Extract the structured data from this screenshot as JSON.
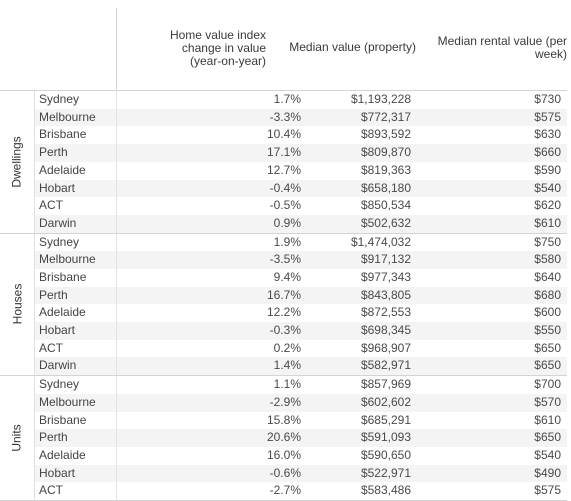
{
  "chart_data": {
    "type": "table",
    "columns": [
      "Home value index change in value (year-on-year)",
      "Median value (property)",
      "Median rental value (per week)"
    ],
    "groups": [
      {
        "name": "Dwellings",
        "rows": [
          {
            "city": "Sydney",
            "change": "1.7%",
            "median": "$1,193,228",
            "rent": "$730"
          },
          {
            "city": "Melbourne",
            "change": "-3.3%",
            "median": "$772,317",
            "rent": "$575"
          },
          {
            "city": "Brisbane",
            "change": "10.4%",
            "median": "$893,592",
            "rent": "$630"
          },
          {
            "city": "Perth",
            "change": "17.1%",
            "median": "$809,870",
            "rent": "$660"
          },
          {
            "city": "Adelaide",
            "change": "12.7%",
            "median": "$819,363",
            "rent": "$590"
          },
          {
            "city": "Hobart",
            "change": "-0.4%",
            "median": "$658,180",
            "rent": "$540"
          },
          {
            "city": "ACT",
            "change": "-0.5%",
            "median": "$850,534",
            "rent": "$620"
          },
          {
            "city": "Darwin",
            "change": "0.9%",
            "median": "$502,632",
            "rent": "$610"
          }
        ]
      },
      {
        "name": "Houses",
        "rows": [
          {
            "city": "Sydney",
            "change": "1.9%",
            "median": "$1,474,032",
            "rent": "$750"
          },
          {
            "city": "Melbourne",
            "change": "-3.5%",
            "median": "$917,132",
            "rent": "$580"
          },
          {
            "city": "Brisbane",
            "change": "9.4%",
            "median": "$977,343",
            "rent": "$640"
          },
          {
            "city": "Perth",
            "change": "16.7%",
            "median": "$843,805",
            "rent": "$680"
          },
          {
            "city": "Adelaide",
            "change": "12.2%",
            "median": "$872,553",
            "rent": "$600"
          },
          {
            "city": "Hobart",
            "change": "-0.3%",
            "median": "$698,345",
            "rent": "$550"
          },
          {
            "city": "ACT",
            "change": "0.2%",
            "median": "$968,907",
            "rent": "$650"
          },
          {
            "city": "Darwin",
            "change": "1.4%",
            "median": "$582,971",
            "rent": "$650"
          }
        ]
      },
      {
        "name": "Units",
        "rows": [
          {
            "city": "Sydney",
            "change": "1.1%",
            "median": "$857,969",
            "rent": "$700"
          },
          {
            "city": "Melbourne",
            "change": "-2.9%",
            "median": "$602,602",
            "rent": "$570"
          },
          {
            "city": "Brisbane",
            "change": "15.8%",
            "median": "$685,291",
            "rent": "$610"
          },
          {
            "city": "Perth",
            "change": "20.6%",
            "median": "$591,093",
            "rent": "$650"
          },
          {
            "city": "Adelaide",
            "change": "16.0%",
            "median": "$590,650",
            "rent": "$540"
          },
          {
            "city": "Hobart",
            "change": "-0.6%",
            "median": "$522,971",
            "rent": "$490"
          },
          {
            "city": "ACT",
            "change": "-2.7%",
            "median": "$583,486",
            "rent": "$575"
          }
        ]
      }
    ]
  }
}
